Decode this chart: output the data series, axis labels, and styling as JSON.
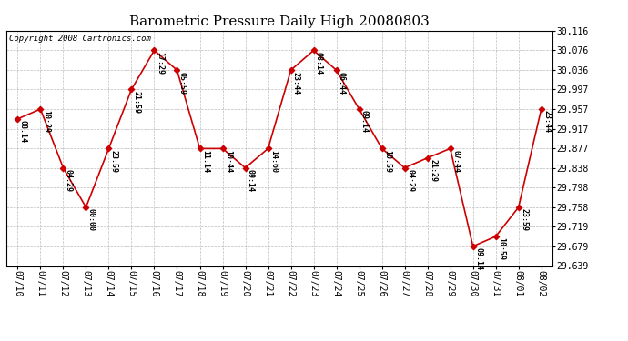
{
  "title": "Barometric Pressure Daily High 20080803",
  "copyright": "Copyright 2008 Cartronics.com",
  "x_labels": [
    "07/10",
    "07/11",
    "07/12",
    "07/13",
    "07/14",
    "07/15",
    "07/16",
    "07/17",
    "07/18",
    "07/19",
    "07/20",
    "07/21",
    "07/22",
    "07/23",
    "07/24",
    "07/25",
    "07/26",
    "07/27",
    "07/28",
    "07/29",
    "07/30",
    "07/31",
    "08/01",
    "08/02"
  ],
  "points": [
    [
      0,
      29.937,
      "08:14"
    ],
    [
      1,
      29.957,
      "10:29"
    ],
    [
      2,
      29.838,
      "04:29"
    ],
    [
      3,
      29.758,
      "00:00"
    ],
    [
      4,
      29.877,
      "23:59"
    ],
    [
      5,
      29.997,
      "21:59"
    ],
    [
      6,
      30.076,
      "17:29"
    ],
    [
      7,
      30.036,
      "05:59"
    ],
    [
      8,
      29.877,
      "11:14"
    ],
    [
      9,
      29.877,
      "10:44"
    ],
    [
      10,
      29.838,
      "09:14"
    ],
    [
      11,
      29.877,
      "14:60"
    ],
    [
      12,
      30.036,
      "23:44"
    ],
    [
      13,
      30.076,
      "08:14"
    ],
    [
      14,
      30.036,
      "06:44"
    ],
    [
      15,
      29.957,
      "09:14"
    ],
    [
      16,
      29.877,
      "10:59"
    ],
    [
      17,
      29.838,
      "04:29"
    ],
    [
      18,
      29.858,
      "21:29"
    ],
    [
      19,
      29.877,
      "07:44"
    ],
    [
      20,
      29.679,
      "09:14"
    ],
    [
      21,
      29.699,
      "10:59"
    ],
    [
      22,
      29.758,
      "23:59"
    ],
    [
      23,
      29.957,
      "23:44"
    ]
  ],
  "ylim_min": 29.639,
  "ylim_max": 30.116,
  "yticks": [
    29.639,
    29.679,
    29.719,
    29.758,
    29.798,
    29.838,
    29.877,
    29.917,
    29.957,
    29.997,
    30.036,
    30.076,
    30.116
  ],
  "line_color": "#cc0000",
  "marker_color": "#cc0000",
  "bg_color": "#ffffff",
  "grid_color": "#bbbbbb",
  "title_fontsize": 11,
  "tick_fontsize": 7,
  "annot_fontsize": 6,
  "copyright_fontsize": 6.5
}
